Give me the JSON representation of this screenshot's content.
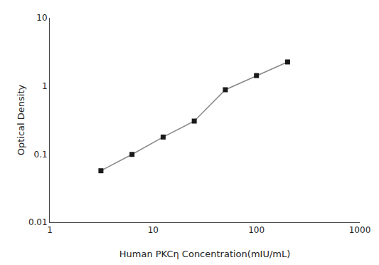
{
  "chart_data": {
    "type": "line",
    "xlabel": "Human PKCη Concentration(mIU/mL)",
    "ylabel": "Optical Density",
    "x": [
      3.125,
      6.25,
      12.5,
      25,
      50,
      100,
      200
    ],
    "values": [
      0.057,
      0.099,
      0.178,
      0.305,
      0.88,
      1.42,
      2.25
    ],
    "xlim": [
      1,
      1000
    ],
    "ylim": [
      0.01,
      10
    ],
    "xticks": [
      1,
      10,
      100,
      1000
    ],
    "yticks": [
      0.01,
      0.1,
      1,
      10
    ],
    "log": true,
    "grid": false,
    "marker": "square",
    "color": "#888888",
    "colors": [
      "#1a1a1a",
      "#1a1a1a",
      "#1a1a1a",
      "#1a1a1a",
      "#1a1a1a",
      "#1a1a1a",
      "#1a1a1a"
    ]
  }
}
